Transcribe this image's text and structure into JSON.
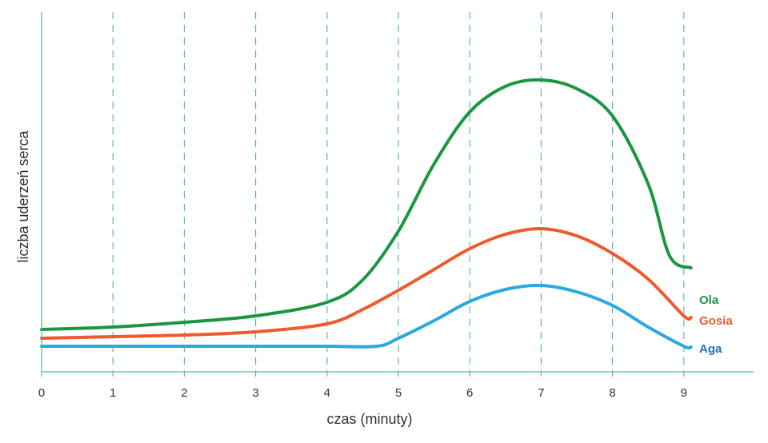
{
  "chart_data": {
    "type": "line",
    "xlabel": "czas (minuty)",
    "ylabel": "liczba uderzeń serca",
    "xlim": [
      0,
      10
    ],
    "x_ticks": [
      "0",
      "1",
      "2",
      "3",
      "4",
      "5",
      "6",
      "7",
      "8",
      "9"
    ],
    "grid": "vertical dashed",
    "legend_placement": "right, at line ends",
    "series": [
      {
        "name": "Ola",
        "color": "#1a9641",
        "x": [
          0,
          1,
          2,
          3,
          4,
          4.5,
          5,
          5.5,
          6,
          6.5,
          7,
          7.5,
          8,
          8.5,
          8.8,
          9.1
        ],
        "y": [
          53,
          56,
          62,
          70,
          87,
          115,
          176,
          260,
          325,
          357,
          365,
          354,
          320,
          235,
          145,
          130
        ]
      },
      {
        "name": "Gosia",
        "color": "#ef5a2d",
        "x": [
          0,
          1,
          2,
          3,
          4,
          4.5,
          5,
          5.5,
          6,
          6.5,
          7,
          7.5,
          8,
          8.5,
          9,
          9.1
        ],
        "y": [
          42,
          44,
          46,
          50,
          60,
          78,
          102,
          128,
          154,
          172,
          179,
          170,
          148,
          116,
          70,
          68
        ]
      },
      {
        "name": "Aga",
        "color": "#29a9e0",
        "x": [
          0,
          1,
          2,
          3,
          4,
          4.7,
          5,
          5.5,
          6,
          6.5,
          7,
          7.5,
          8,
          8.5,
          9,
          9.1
        ],
        "y": [
          32,
          32,
          32,
          32,
          32,
          32,
          42,
          64,
          88,
          103,
          108,
          100,
          83,
          56,
          32,
          31
        ]
      }
    ]
  },
  "colors": {
    "axis": "#5bb9a8",
    "grid": "#4fb3a3",
    "legend_Ola": "#1a9641",
    "legend_Gosia": "#ef5a2d",
    "legend_Aga": "#1f72b8"
  }
}
